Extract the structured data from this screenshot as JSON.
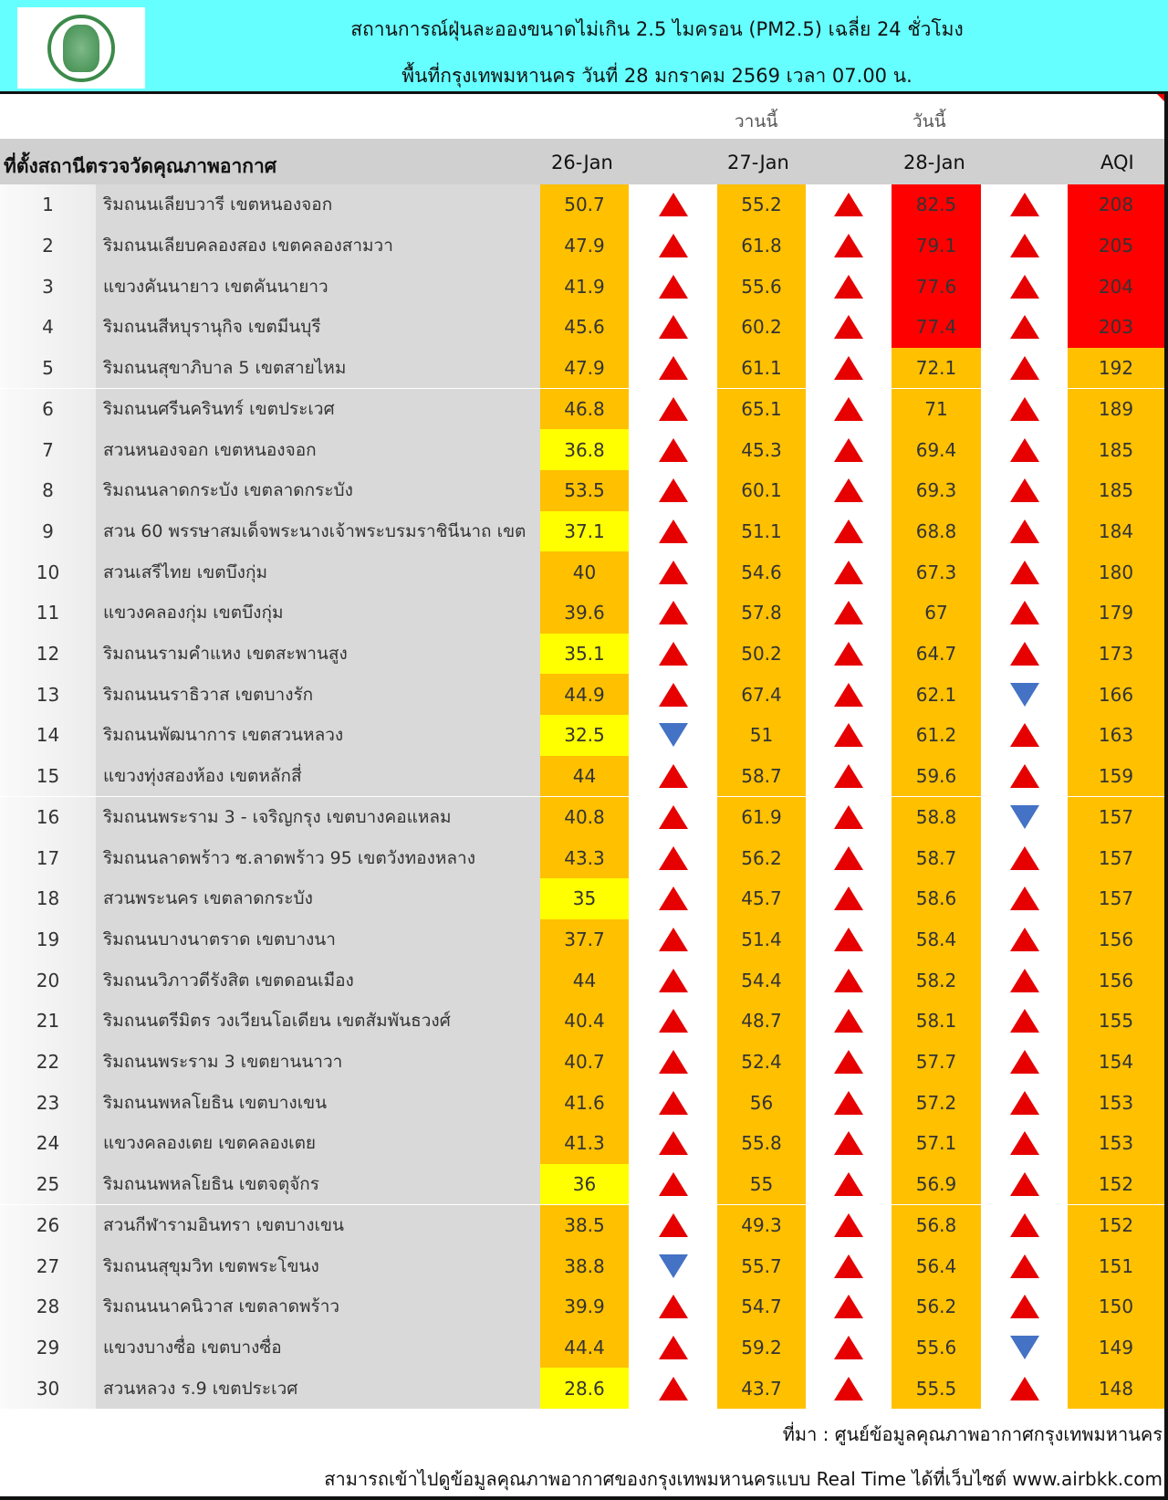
{
  "header": {
    "title_line1": "สถานการณ์ฝุ่นละอองขนาดไม่เกิน 2.5 ไมครอน (PM2.5) เฉลี่ย 24 ชั่วโมง",
    "title_line2": "พื้นที่กรุงเทพมหานคร วันที่ 28 มกราคม 2569 เวลา 07.00 น.",
    "logo": "Bangkok Metropolitan Administration seal"
  },
  "subheaders": {
    "yesterday": "วานนี้",
    "today": "วันนี้"
  },
  "columns": {
    "station": "ที่ตั้งสถานีตรวจวัดคุณภาพอากาศ",
    "d1": "26-Jan",
    "d2": "27-Jan",
    "d3": "28-Jan",
    "aqi": "AQI"
  },
  "colors": {
    "orange": "#FFC000",
    "yellow": "#FFFF00",
    "red": "#FF0000",
    "header_bg": "#66FFFF",
    "arrow_up": "#E60000",
    "arrow_down": "#4472C4"
  },
  "rows": [
    {
      "no": "1",
      "name": "ริมถนนเลียบวารี เขตหนองจอก",
      "d1": "50.7",
      "t1": "up",
      "d2": "55.2",
      "t2": "up",
      "d3": "82.5",
      "t3": "up",
      "aqi": "208",
      "c1": "orange",
      "c3": "red",
      "c4": "red"
    },
    {
      "no": "2",
      "name": "ริมถนนเลียบคลองสอง เขตคลองสามวา",
      "d1": "47.9",
      "t1": "up",
      "d2": "61.8",
      "t2": "up",
      "d3": "79.1",
      "t3": "up",
      "aqi": "205",
      "c1": "orange",
      "c3": "red",
      "c4": "red"
    },
    {
      "no": "3",
      "name": "แขวงคันนายาว เขตคันนายาว",
      "d1": "41.9",
      "t1": "up",
      "d2": "55.6",
      "t2": "up",
      "d3": "77.6",
      "t3": "up",
      "aqi": "204",
      "c1": "orange",
      "c3": "red",
      "c4": "red"
    },
    {
      "no": "4",
      "name": "ริมถนนสีหบุรานุกิจ เขตมีนบุรี",
      "d1": "45.6",
      "t1": "up",
      "d2": "60.2",
      "t2": "up",
      "d3": "77.4",
      "t3": "up",
      "aqi": "203",
      "c1": "orange",
      "c3": "red",
      "c4": "red"
    },
    {
      "no": "5",
      "name": "ริมถนนสุขาภิบาล 5 เขตสายไหม",
      "d1": "47.9",
      "t1": "up",
      "d2": "61.1",
      "t2": "up",
      "d3": "72.1",
      "t3": "up",
      "aqi": "192",
      "c1": "orange",
      "c3": "orange",
      "c4": "orange"
    },
    {
      "no": "6",
      "name": "ริมถนนศรีนครินทร์ เขตประเวศ",
      "d1": "46.8",
      "t1": "up",
      "d2": "65.1",
      "t2": "up",
      "d3": "71",
      "t3": "up",
      "aqi": "189",
      "c1": "orange",
      "c3": "orange",
      "c4": "orange"
    },
    {
      "no": "7",
      "name": "สวนหนองจอก เขตหนองจอก",
      "d1": "36.8",
      "t1": "up",
      "d2": "45.3",
      "t2": "up",
      "d3": "69.4",
      "t3": "up",
      "aqi": "185",
      "c1": "yellow",
      "c3": "orange",
      "c4": "orange"
    },
    {
      "no": "8",
      "name": "ริมถนนลาดกระบัง เขตลาดกระบัง",
      "d1": "53.5",
      "t1": "up",
      "d2": "60.1",
      "t2": "up",
      "d3": "69.3",
      "t3": "up",
      "aqi": "185",
      "c1": "orange",
      "c3": "orange",
      "c4": "orange"
    },
    {
      "no": "9",
      "name": "สวน 60 พรรษาสมเด็จพระนางเจ้าพระบรมราชินีนาถ เขต",
      "d1": "37.1",
      "t1": "up",
      "d2": "51.1",
      "t2": "up",
      "d3": "68.8",
      "t3": "up",
      "aqi": "184",
      "c1": "yellow",
      "c3": "orange",
      "c4": "orange"
    },
    {
      "no": "10",
      "name": "สวนเสรีไทย  เขตบึงกุ่ม",
      "d1": "40",
      "t1": "up",
      "d2": "54.6",
      "t2": "up",
      "d3": "67.3",
      "t3": "up",
      "aqi": "180",
      "c1": "orange",
      "c3": "orange",
      "c4": "orange"
    },
    {
      "no": "11",
      "name": "แขวงคลองกุ่ม เขตบึงกุ่ม",
      "d1": "39.6",
      "t1": "up",
      "d2": "57.8",
      "t2": "up",
      "d3": "67",
      "t3": "up",
      "aqi": "179",
      "c1": "orange",
      "c3": "orange",
      "c4": "orange"
    },
    {
      "no": "12",
      "name": "ริมถนนรามคำแหง เขตสะพานสูง",
      "d1": "35.1",
      "t1": "up",
      "d2": "50.2",
      "t2": "up",
      "d3": "64.7",
      "t3": "up",
      "aqi": "173",
      "c1": "yellow",
      "c3": "orange",
      "c4": "orange"
    },
    {
      "no": "13",
      "name": "ริมถนนนราธิวาส เขตบางรัก",
      "d1": "44.9",
      "t1": "up",
      "d2": "67.4",
      "t2": "up",
      "d3": "62.1",
      "t3": "down",
      "aqi": "166",
      "c1": "orange",
      "c3": "orange",
      "c4": "orange"
    },
    {
      "no": "14",
      "name": "ริมถนนพัฒนาการ เขตสวนหลวง",
      "d1": "32.5",
      "t1": "down",
      "d2": "51",
      "t2": "up",
      "d3": "61.2",
      "t3": "up",
      "aqi": "163",
      "c1": "yellow",
      "c3": "orange",
      "c4": "orange"
    },
    {
      "no": "15",
      "name": "แขวงทุ่งสองห้อง เขตหลักสี่",
      "d1": "44",
      "t1": "up",
      "d2": "58.7",
      "t2": "up",
      "d3": "59.6",
      "t3": "up",
      "aqi": "159",
      "c1": "orange",
      "c3": "orange",
      "c4": "orange"
    },
    {
      "no": "16",
      "name": "ริมถนนพระราม 3 - เจริญกรุง เขตบางคอแหลม",
      "d1": "40.8",
      "t1": "up",
      "d2": "61.9",
      "t2": "up",
      "d3": "58.8",
      "t3": "down",
      "aqi": "157",
      "c1": "orange",
      "c3": "orange",
      "c4": "orange"
    },
    {
      "no": "17",
      "name": "ริมถนนลาดพร้าว ซ.ลาดพร้าว 95 เขตวังทองหลาง",
      "d1": "43.3",
      "t1": "up",
      "d2": "56.2",
      "t2": "up",
      "d3": "58.7",
      "t3": "up",
      "aqi": "157",
      "c1": "orange",
      "c3": "orange",
      "c4": "orange"
    },
    {
      "no": "18",
      "name": "สวนพระนคร เขตลาดกระบัง",
      "d1": "35",
      "t1": "up",
      "d2": "45.7",
      "t2": "up",
      "d3": "58.6",
      "t3": "up",
      "aqi": "157",
      "c1": "yellow",
      "c3": "orange",
      "c4": "orange"
    },
    {
      "no": "19",
      "name": "ริมถนนบางนาตราด เขตบางนา",
      "d1": "37.7",
      "t1": "up",
      "d2": "51.4",
      "t2": "up",
      "d3": "58.4",
      "t3": "up",
      "aqi": "156",
      "c1": "orange",
      "c3": "orange",
      "c4": "orange"
    },
    {
      "no": "20",
      "name": "ริมถนนวิภาวดีรังสิต เขตดอนเมือง",
      "d1": "44",
      "t1": "up",
      "d2": "54.4",
      "t2": "up",
      "d3": "58.2",
      "t3": "up",
      "aqi": "156",
      "c1": "orange",
      "c3": "orange",
      "c4": "orange"
    },
    {
      "no": "21",
      "name": "ริมถนนตรีมิตร วงเวียนโอเดียน เขตสัมพันธวงศ์",
      "d1": "40.4",
      "t1": "up",
      "d2": "48.7",
      "t2": "up",
      "d3": "58.1",
      "t3": "up",
      "aqi": "155",
      "c1": "orange",
      "c3": "orange",
      "c4": "orange"
    },
    {
      "no": "22",
      "name": "ริมถนนพระราม 3 เขตยานนาวา",
      "d1": "40.7",
      "t1": "up",
      "d2": "52.4",
      "t2": "up",
      "d3": "57.7",
      "t3": "up",
      "aqi": "154",
      "c1": "orange",
      "c3": "orange",
      "c4": "orange"
    },
    {
      "no": "23",
      "name": "ริมถนนพหลโยธิน เขตบางเขน",
      "d1": "41.6",
      "t1": "up",
      "d2": "56",
      "t2": "up",
      "d3": "57.2",
      "t3": "up",
      "aqi": "153",
      "c1": "orange",
      "c3": "orange",
      "c4": "orange"
    },
    {
      "no": "24",
      "name": "แขวงคลองเตย เขตคลองเตย",
      "d1": "41.3",
      "t1": "up",
      "d2": "55.8",
      "t2": "up",
      "d3": "57.1",
      "t3": "up",
      "aqi": "153",
      "c1": "orange",
      "c3": "orange",
      "c4": "orange"
    },
    {
      "no": "25",
      "name": "ริมถนนพหลโยธิน เขตจตุจักร",
      "d1": "36",
      "t1": "up",
      "d2": "55",
      "t2": "up",
      "d3": "56.9",
      "t3": "up",
      "aqi": "152",
      "c1": "yellow",
      "c3": "orange",
      "c4": "orange"
    },
    {
      "no": "26",
      "name": "สวนกีฬารามอินทรา เขตบางเขน",
      "d1": "38.5",
      "t1": "up",
      "d2": "49.3",
      "t2": "up",
      "d3": "56.8",
      "t3": "up",
      "aqi": "152",
      "c1": "orange",
      "c3": "orange",
      "c4": "orange"
    },
    {
      "no": "27",
      "name": "ริมถนนสุขุมวิท เขตพระโขนง",
      "d1": "38.8",
      "t1": "down",
      "d2": "55.7",
      "t2": "up",
      "d3": "56.4",
      "t3": "up",
      "aqi": "151",
      "c1": "orange",
      "c3": "orange",
      "c4": "orange"
    },
    {
      "no": "28",
      "name": "ริมถนนนาคนิวาส เขตลาดพร้าว",
      "d1": "39.9",
      "t1": "up",
      "d2": "54.7",
      "t2": "up",
      "d3": "56.2",
      "t3": "up",
      "aqi": "150",
      "c1": "orange",
      "c3": "orange",
      "c4": "orange"
    },
    {
      "no": "29",
      "name": "แขวงบางซื่อ เขตบางซื่อ",
      "d1": "44.4",
      "t1": "up",
      "d2": "59.2",
      "t2": "up",
      "d3": "55.6",
      "t3": "down",
      "aqi": "149",
      "c1": "orange",
      "c3": "orange",
      "c4": "orange"
    },
    {
      "no": "30",
      "name": "สวนหลวง ร.9 เขตประเวศ",
      "d1": "28.6",
      "t1": "up",
      "d2": "43.7",
      "t2": "up",
      "d3": "55.5",
      "t3": "up",
      "aqi": "148",
      "c1": "yellow",
      "c3": "orange",
      "c4": "orange"
    }
  ],
  "footer": {
    "source": "ที่มา : ศูนย์ข้อมูลคุณภาพอากาศกรุงเทพมหานคร",
    "realtime": "สามารถเข้าไปดูข้อมูลคุณภาพอากาศของกรุงเทพมหานครแบบ Real Time ได้ที่เว็บไซต์ www.airbkk.com"
  }
}
